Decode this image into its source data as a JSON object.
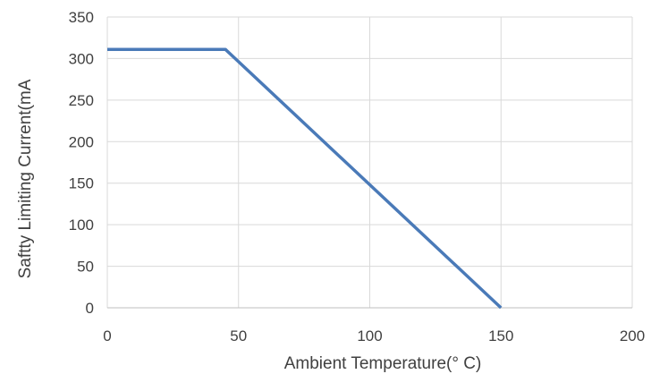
{
  "chart_data": {
    "type": "line",
    "title": "",
    "xlabel": "Ambient  Temperature(°  C)",
    "ylabel": "Saftty Limiting Current(mA",
    "xlim": [
      0,
      200
    ],
    "ylim": [
      0,
      350
    ],
    "x_ticks": [
      0,
      50,
      100,
      150,
      200
    ],
    "y_ticks": [
      0,
      50,
      100,
      150,
      200,
      250,
      300,
      350
    ],
    "grid": {
      "vertical": true,
      "horizontal": true
    },
    "legend": "none",
    "series": [
      {
        "color": "#4a7ab8",
        "points": [
          [
            0,
            311
          ],
          [
            45,
            311
          ],
          [
            150,
            0
          ]
        ]
      }
    ]
  }
}
